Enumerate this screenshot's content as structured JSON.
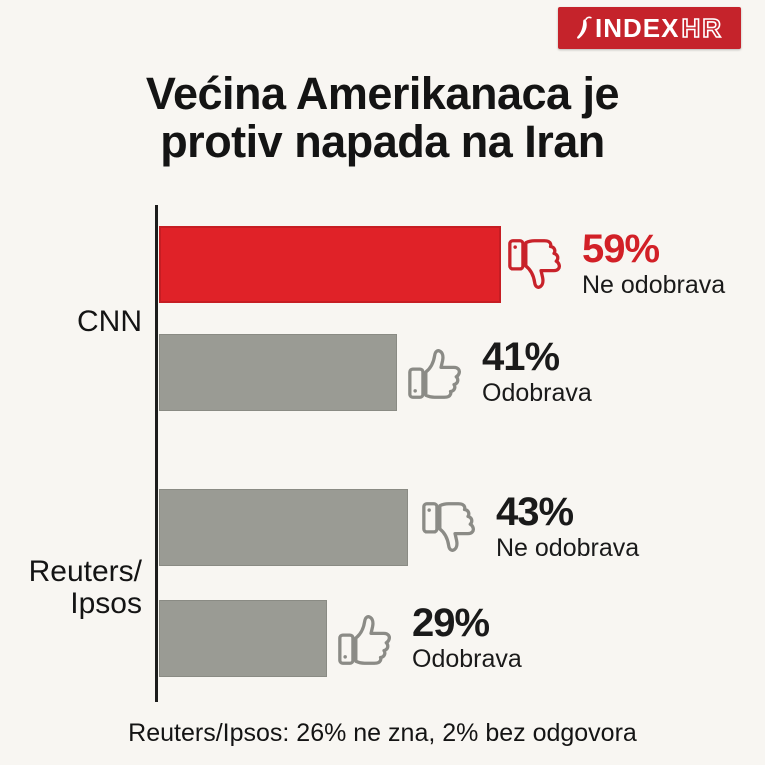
{
  "logo": {
    "brand": "INDEX",
    "suffix": "HR",
    "bg_color": "#c5232b",
    "icon": "chili-pepper-icon"
  },
  "title": {
    "line1": "Većina Amerikanaca je",
    "line2": "protiv napada na Iran"
  },
  "chart_data": {
    "type": "bar",
    "orientation": "horizontal",
    "title": "Većina Amerikanaca je protiv napada na Iran",
    "unit": "%",
    "xlim": [
      0,
      100
    ],
    "grid": false,
    "legend": false,
    "axis_color": "#1c1c1c",
    "background": "#f8f6f2",
    "groups": [
      {
        "category": "CNN",
        "bars": [
          {
            "value": 59,
            "label": "59%",
            "sublabel": "Ne odobrava",
            "sentiment": "thumbs-down",
            "color": "#e02228",
            "label_color": "#d22027",
            "icon_color": "#c8222a"
          },
          {
            "value": 41,
            "label": "41%",
            "sublabel": "Odobrava",
            "sentiment": "thumbs-up",
            "color": "#9a9b94",
            "label_color": "#1a1a1a",
            "icon_color": "#8b8b86"
          }
        ]
      },
      {
        "category_line1": "Reuters/",
        "category_line2": "Ipsos",
        "bars": [
          {
            "value": 43,
            "label": "43%",
            "sublabel": "Ne odobrava",
            "sentiment": "thumbs-down",
            "color": "#9a9b94",
            "label_color": "#1a1a1a",
            "icon_color": "#8b8b86"
          },
          {
            "value": 29,
            "label": "29%",
            "sublabel": "Odobrava",
            "sentiment": "thumbs-up",
            "color": "#9a9b94",
            "label_color": "#1a1a1a",
            "icon_color": "#8b8b86"
          }
        ]
      }
    ],
    "note": "Reuters/Ipsos: 26% ne zna, 2% bez odgovora"
  },
  "footer": {
    "note": "Reuters/Ipsos: 26% ne zna, 2% bez odgovora"
  }
}
